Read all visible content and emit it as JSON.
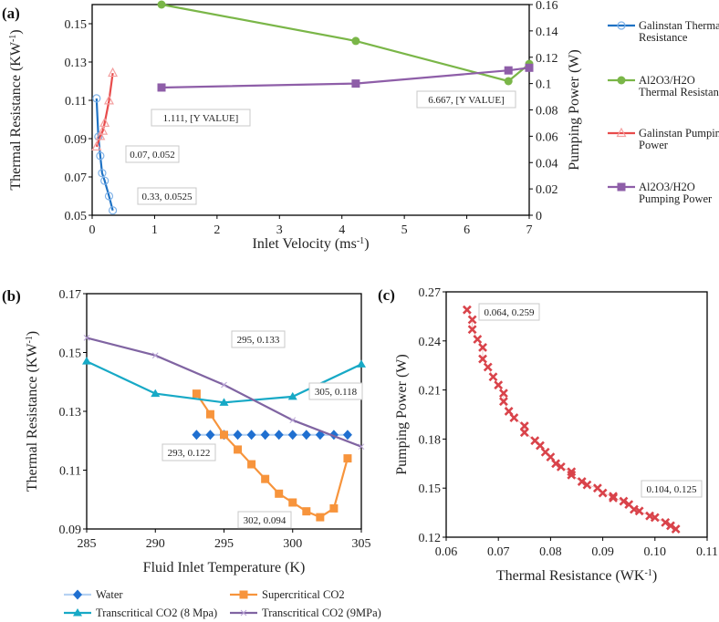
{
  "chart_data": [
    {
      "panel_label": "(a)",
      "type": "line",
      "xlabel": [
        "Inlet Velocity (ms",
        "-1",
        ")"
      ],
      "ylabel": [
        "Thermal Resistance (KW",
        "-1",
        ")"
      ],
      "y2label": [
        "Pumping Power (W)",
        "",
        ""
      ],
      "xlim": [
        0,
        7
      ],
      "ylim": [
        0.05,
        0.16
      ],
      "y2lim": [
        0,
        0.16
      ],
      "xticks": [
        "0",
        "1",
        "2",
        "3",
        "4",
        "5",
        "6",
        "7"
      ],
      "yticks": [
        "0.05",
        "0.07",
        "0.09",
        "0.11",
        "0.13",
        "0.15"
      ],
      "y2ticks": [
        "0",
        "0.02",
        "0.04",
        "0.06",
        "0.08",
        "0.1",
        "0.12",
        "0.14",
        "0.16"
      ],
      "grid": false,
      "legend_placement": "right",
      "series": [
        {
          "name": "Galinstan Thermal Resistance",
          "axis": "left",
          "color": "#1f72c4",
          "marker": "open-circle",
          "x": [
            0.07,
            0.1,
            0.13,
            0.16,
            0.2,
            0.27,
            0.33
          ],
          "y": [
            0.111,
            0.091,
            0.081,
            0.072,
            0.068,
            0.06,
            0.0525
          ]
        },
        {
          "name": "Al2O3/H2O Thermal Resistance",
          "axis": "left",
          "color": "#7ab648",
          "marker": "circle",
          "x": [
            1.111,
            4.222,
            6.667,
            7
          ],
          "y": [
            0.16,
            0.141,
            0.12,
            0.129
          ]
        },
        {
          "name": "Galinstan Pumping Power",
          "axis": "right",
          "color": "#e84b4b",
          "marker": "open-triangle",
          "x": [
            0.07,
            0.13,
            0.17,
            0.2,
            0.27,
            0.33
          ],
          "y": [
            0.052,
            0.06,
            0.064,
            0.07,
            0.087,
            0.108
          ]
        },
        {
          "name": "Al2O3/H2O Pumping Power",
          "axis": "right",
          "color": "#8e5ea8",
          "marker": "square",
          "x": [
            1.111,
            4.222,
            6.667,
            7
          ],
          "y": [
            0.097,
            0.1,
            0.11,
            0.112
          ]
        }
      ],
      "annotations": [
        "1.111, [Y VALUE]",
        "0.07, 0.052",
        "0.33, 0.0525",
        "6.667, [Y VALUE]"
      ]
    },
    {
      "panel_label": "(b)",
      "type": "line",
      "xlabel": [
        "Fluid Inlet Temperature (K)",
        "",
        ""
      ],
      "ylabel": [
        "Thermal Resistance (KW",
        "-1",
        ")"
      ],
      "xlim": [
        285,
        305
      ],
      "ylim": [
        0.09,
        0.17
      ],
      "xticks": [
        "285",
        "290",
        "295",
        "300",
        "305"
      ],
      "yticks": [
        "0.09",
        "0.11",
        "0.13",
        "0.15",
        "0.17"
      ],
      "grid": false,
      "legend_placement": "bottom",
      "series": [
        {
          "name": "Water",
          "color": "#1f6fd0",
          "line_color": "#b6d2f2",
          "marker": "diamond",
          "x": [
            293,
            294,
            295,
            296,
            297,
            298,
            299,
            300,
            301,
            302,
            303,
            304
          ],
          "y": [
            0.122,
            0.122,
            0.122,
            0.122,
            0.122,
            0.122,
            0.122,
            0.122,
            0.122,
            0.122,
            0.122,
            0.122
          ]
        },
        {
          "name": "Supercritical CO2",
          "color": "#f7943c",
          "marker": "square",
          "x": [
            293,
            294,
            295,
            296,
            297,
            298,
            299,
            300,
            301,
            302,
            303,
            304
          ],
          "y": [
            0.136,
            0.129,
            0.122,
            0.117,
            0.112,
            0.107,
            0.102,
            0.099,
            0.096,
            0.094,
            0.097,
            0.114
          ]
        },
        {
          "name": "Transcritical CO2 (8 Mpa)",
          "color": "#17a9c6",
          "marker": "triangle",
          "x": [
            285,
            290,
            295,
            300,
            305
          ],
          "y": [
            0.147,
            0.136,
            0.133,
            0.135,
            0.146
          ]
        },
        {
          "name": "Transcritical CO2 (9MPa)",
          "color": "#8064a2",
          "marker": "x-small",
          "x": [
            285,
            290,
            295,
            300,
            305
          ],
          "y": [
            0.155,
            0.149,
            0.139,
            0.127,
            0.118
          ]
        }
      ],
      "annotations": [
        "295, 0.133",
        "305, 0.118",
        "293, 0.122",
        "302, 0.094"
      ]
    },
    {
      "panel_label": "(c)",
      "type": "scatter",
      "xlabel": [
        "Thermal Resistance (WK",
        "-1",
        ")"
      ],
      "ylabel": [
        "Pumping Power (W)",
        "",
        ""
      ],
      "xlim": [
        0.06,
        0.11
      ],
      "ylim": [
        0.12,
        0.27
      ],
      "xticks": [
        "0.06",
        "0.07",
        "0.08",
        "0.09",
        "0.10",
        "0.11"
      ],
      "yticks": [
        "0.12",
        "0.15",
        "0.18",
        "0.21",
        "0.24",
        "0.27"
      ],
      "grid": false,
      "series": [
        {
          "color": "#d9434a",
          "marker": "x-bold",
          "x": [
            0.064,
            0.065,
            0.065,
            0.066,
            0.067,
            0.067,
            0.068,
            0.069,
            0.07,
            0.071,
            0.071,
            0.072,
            0.073,
            0.075,
            0.075,
            0.077,
            0.078,
            0.079,
            0.08,
            0.081,
            0.082,
            0.084,
            0.084,
            0.086,
            0.087,
            0.089,
            0.09,
            0.092,
            0.092,
            0.094,
            0.095,
            0.096,
            0.097,
            0.099,
            0.1,
            0.102,
            0.103,
            0.104
          ],
          "y": [
            0.259,
            0.253,
            0.247,
            0.241,
            0.236,
            0.229,
            0.224,
            0.218,
            0.213,
            0.208,
            0.203,
            0.197,
            0.193,
            0.188,
            0.184,
            0.179,
            0.176,
            0.172,
            0.169,
            0.165,
            0.163,
            0.16,
            0.158,
            0.154,
            0.152,
            0.15,
            0.147,
            0.145,
            0.144,
            0.142,
            0.14,
            0.137,
            0.136,
            0.133,
            0.132,
            0.129,
            0.127,
            0.125
          ]
        }
      ],
      "annotations": [
        "0.064, 0.259",
        "0.104, 0.125"
      ]
    }
  ]
}
